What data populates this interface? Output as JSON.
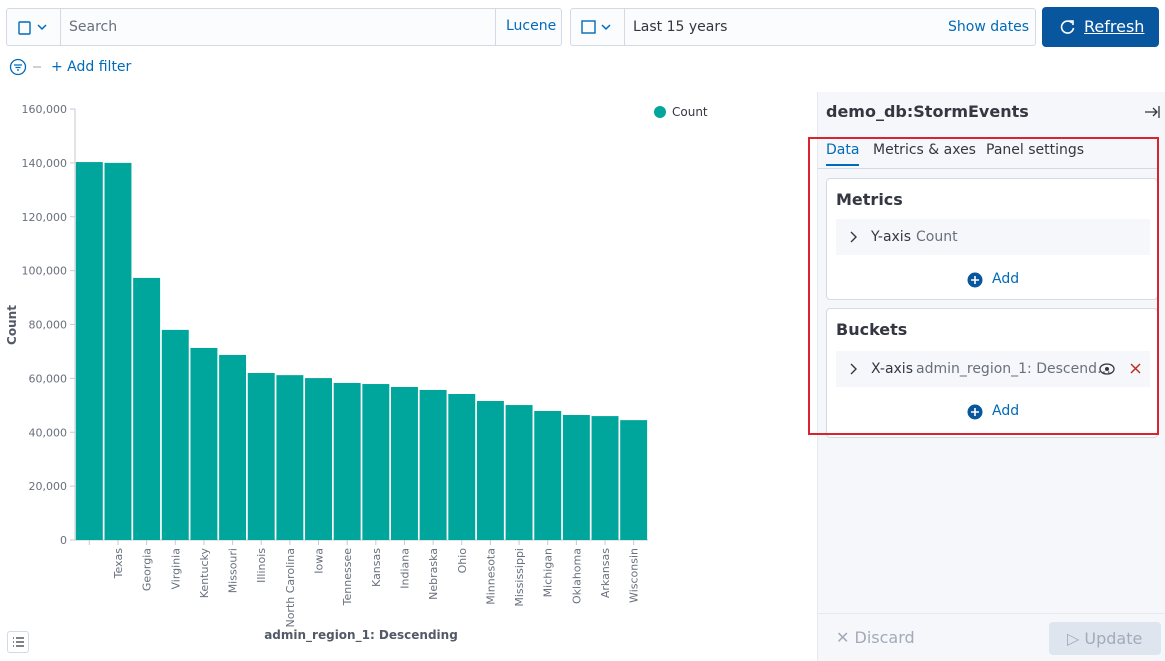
{
  "query_bar": {
    "search_placeholder": "Search",
    "language": "Lucene",
    "time_range": "Last 15 years",
    "show_dates": "Show dates",
    "refresh": "Refresh"
  },
  "filter_bar": {
    "add_filter": "+ Add filter"
  },
  "chart_data": {
    "type": "bar",
    "categories": [
      null,
      "Texas",
      "Georgia",
      "Virginia",
      "Kentucky",
      "Missouri",
      "Illinois",
      "North Carolina",
      "Iowa",
      "Tennessee",
      "Kansas",
      "Indiana",
      "Nebraska",
      "Ohio",
      "Minnesota",
      "Mississippi",
      "Michigan",
      "Oklahoma",
      "Arkansas",
      "Wisconsin"
    ],
    "series": [
      {
        "name": "Count",
        "color": "#00a69b",
        "values": [
          140300,
          140000,
          97300,
          78000,
          71300,
          68700,
          62000,
          61200,
          60100,
          58300,
          57900,
          56800,
          55700,
          54200,
          51600,
          50100,
          47900,
          46400,
          46000,
          44500
        ]
      }
    ],
    "ylim": [
      0,
      160000
    ],
    "yticks": [
      0,
      {
        "value": 20000,
        "label": "20,000"
      },
      {
        "value": 40000,
        "label": "40,000"
      },
      {
        "value": 60000,
        "label": "60,000"
      },
      {
        "value": 80000,
        "label": "80,000"
      },
      {
        "value": 100000,
        "label": "100,000"
      },
      {
        "value": 120000,
        "label": "120,000"
      },
      {
        "value": 140000,
        "label": "140,000"
      },
      {
        "value": 160000,
        "label": "160,000"
      }
    ],
    "y_label": "Count",
    "x_label": "admin_region_1: Descending",
    "legend": "top-right"
  },
  "panel": {
    "title": "demo_db:StormEvents",
    "tabs": [
      "Data",
      "Metrics & axes",
      "Panel settings"
    ],
    "metrics": {
      "title": "Metrics",
      "items": [
        {
          "axis": "Y-axis",
          "label": "Count"
        }
      ],
      "add": "Add"
    },
    "buckets": {
      "title": "Buckets",
      "items": [
        {
          "axis": "X-axis",
          "label": "admin_region_1: Descend…"
        }
      ],
      "add": "Add"
    },
    "discard": "Discard",
    "update": "Update"
  }
}
